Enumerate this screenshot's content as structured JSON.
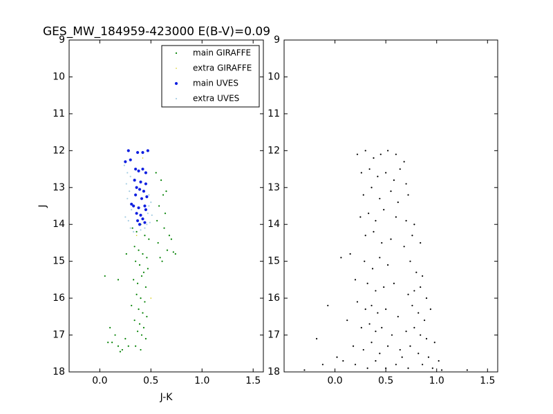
{
  "chart_data": [
    {
      "type": "scatter",
      "title": "GES_MW_184959-423000 E(B-V)=0.09",
      "xlabel": "J-K",
      "ylabel": "J",
      "xlim": [
        -0.3,
        1.6
      ],
      "ylim": [
        18,
        9
      ],
      "xticks": [
        {
          "value": 0,
          "label": "0.0"
        },
        0.5,
        {
          "value": 1,
          "label": "1.0"
        },
        1.5
      ],
      "yticks": [
        9,
        10,
        11,
        12,
        13,
        14,
        15,
        16,
        17,
        18
      ],
      "legend": "upper right",
      "series": [
        {
          "name": "main GIRAFFE",
          "color": "#008000",
          "x": [
            0.55,
            0.6,
            0.62,
            0.58,
            0.65,
            0.56,
            0.63,
            0.68,
            0.57,
            0.66,
            0.7,
            0.59,
            0.72,
            0.61,
            0.74,
            0.64,
            0.32,
            0.36,
            0.4,
            0.44,
            0.48,
            0.34,
            0.38,
            0.42,
            0.46,
            0.35,
            0.39,
            0.43,
            0.47,
            0.33,
            0.37,
            0.41,
            0.45,
            0.36,
            0.4,
            0.44,
            0.31,
            0.38,
            0.42,
            0.46,
            0.34,
            0.39,
            0.43,
            0.37,
            0.41,
            0.45,
            0.35,
            0.4,
            0.12,
            0.15,
            0.18,
            0.22,
            0.25,
            0.1,
            0.2,
            0.28,
            0.08,
            0.05,
            0.26,
            0.18
          ],
          "y": [
            12.6,
            12.8,
            13.2,
            13.5,
            13.1,
            13.9,
            14.1,
            14.3,
            14.5,
            14.7,
            14.4,
            14.9,
            14.75,
            15.0,
            14.8,
            13.7,
            14.1,
            14.2,
            14.0,
            14.3,
            14.4,
            14.6,
            14.7,
            14.8,
            14.9,
            15.0,
            15.1,
            15.3,
            15.2,
            15.5,
            15.6,
            15.4,
            15.7,
            15.9,
            16.0,
            16.1,
            16.2,
            16.3,
            16.4,
            16.5,
            16.6,
            16.7,
            16.8,
            16.9,
            17.0,
            17.1,
            17.3,
            17.4,
            17.2,
            17.0,
            17.3,
            17.4,
            17.1,
            16.8,
            17.45,
            17.3,
            17.2,
            15.4,
            14.8,
            15.5
          ]
        },
        {
          "name": "extra GIRAFFE",
          "color": "#d4c800",
          "x": [
            0.42,
            0.36,
            0.5
          ],
          "y": [
            12.2,
            14.3,
            16.0
          ]
        },
        {
          "name": "main UVES",
          "color": "#1020e0",
          "x": [
            0.28,
            0.37,
            0.42,
            0.47,
            0.25,
            0.3,
            0.35,
            0.38,
            0.42,
            0.45,
            0.34,
            0.4,
            0.45,
            0.36,
            0.39,
            0.43,
            0.35,
            0.41,
            0.46,
            0.33,
            0.38,
            0.44,
            0.31,
            0.36,
            0.4,
            0.45,
            0.37,
            0.42,
            0.39,
            0.44
          ],
          "y": [
            12.0,
            12.05,
            12.05,
            12.0,
            12.3,
            12.25,
            12.5,
            12.55,
            12.5,
            12.6,
            12.8,
            12.85,
            12.9,
            13.0,
            13.05,
            13.1,
            13.2,
            13.3,
            13.25,
            13.5,
            13.55,
            13.5,
            13.45,
            13.7,
            13.75,
            13.6,
            13.9,
            13.85,
            14.0,
            13.95
          ]
        },
        {
          "name": "extra UVES",
          "color": "#a6cee3",
          "x": [
            0.24,
            0.27,
            0.3,
            0.26,
            0.29,
            0.48,
            0.5,
            0.27,
            0.31,
            0.47,
            0.25,
            0.28,
            0.49,
            0.3,
            0.46,
            0.51,
            0.33,
            0.44,
            0.48,
            0.4
          ],
          "y": [
            12.4,
            12.6,
            12.7,
            12.9,
            13.1,
            13.2,
            13.4,
            13.3,
            13.6,
            13.7,
            13.8,
            13.9,
            13.95,
            14.1,
            14.0,
            13.75,
            14.2,
            14.1,
            13.5,
            14.15
          ]
        }
      ]
    },
    {
      "type": "scatter",
      "xlim": [
        -0.5,
        1.6
      ],
      "ylim": [
        18,
        9
      ],
      "xticks": [
        {
          "value": 0,
          "label": "0.0"
        },
        0.5,
        {
          "value": 1,
          "label": "1.0"
        },
        1.5
      ],
      "yticks": [
        9,
        10,
        11,
        12,
        13,
        14,
        15,
        16,
        17,
        18
      ],
      "series": [
        {
          "color": "#000000",
          "x": [
            0.22,
            0.3,
            0.38,
            0.45,
            0.52,
            0.6,
            0.68,
            0.26,
            0.34,
            0.42,
            0.5,
            0.58,
            0.64,
            0.7,
            0.28,
            0.36,
            0.44,
            0.55,
            0.62,
            0.72,
            0.25,
            0.33,
            0.4,
            0.48,
            0.6,
            0.7,
            0.78,
            0.3,
            0.38,
            0.46,
            0.55,
            0.68,
            0.76,
            0.84,
            0.15,
            0.29,
            0.37,
            0.44,
            0.52,
            0.74,
            0.8,
            0.86,
            0.06,
            0.2,
            0.32,
            0.4,
            0.48,
            0.58,
            0.72,
            0.78,
            0.84,
            0.9,
            -0.07,
            0.22,
            0.3,
            0.36,
            0.42,
            0.5,
            0.62,
            0.76,
            0.82,
            0.88,
            0.94,
            0.12,
            0.26,
            0.34,
            0.4,
            0.46,
            0.56,
            0.7,
            0.78,
            0.84,
            0.9,
            0.98,
            -0.18,
            0.18,
            0.28,
            0.36,
            0.44,
            0.52,
            0.64,
            0.74,
            0.82,
            0.92,
            1.02,
            -0.12,
            0.08,
            0.2,
            0.32,
            0.4,
            0.5,
            0.6,
            0.72,
            0.86,
            0.96,
            1.05,
            -0.3,
            0.02,
            1.3,
            0.66
          ],
          "y": [
            12.1,
            12.0,
            12.2,
            12.1,
            12.0,
            12.1,
            12.3,
            12.6,
            12.5,
            12.7,
            12.6,
            12.8,
            12.5,
            12.9,
            13.2,
            13.0,
            13.3,
            13.1,
            13.4,
            13.2,
            13.8,
            13.7,
            13.9,
            13.6,
            13.8,
            13.9,
            14.0,
            14.3,
            14.2,
            14.5,
            14.4,
            14.6,
            14.3,
            14.5,
            14.8,
            15.0,
            15.2,
            14.9,
            15.1,
            15.0,
            15.3,
            15.4,
            14.9,
            15.5,
            15.6,
            15.8,
            15.7,
            15.6,
            15.9,
            15.8,
            15.7,
            16.0,
            16.2,
            16.1,
            16.3,
            16.2,
            16.4,
            16.3,
            16.5,
            16.2,
            16.4,
            16.6,
            16.3,
            16.6,
            16.8,
            16.7,
            16.9,
            16.8,
            17.0,
            16.9,
            16.8,
            17.0,
            17.1,
            17.2,
            17.1,
            17.3,
            17.4,
            17.2,
            17.5,
            17.3,
            17.4,
            17.3,
            17.5,
            17.6,
            17.7,
            17.8,
            17.7,
            17.8,
            17.9,
            17.7,
            17.9,
            17.8,
            17.9,
            17.8,
            17.9,
            17.95,
            17.95,
            17.6,
            17.95,
            17.6
          ]
        }
      ]
    }
  ]
}
